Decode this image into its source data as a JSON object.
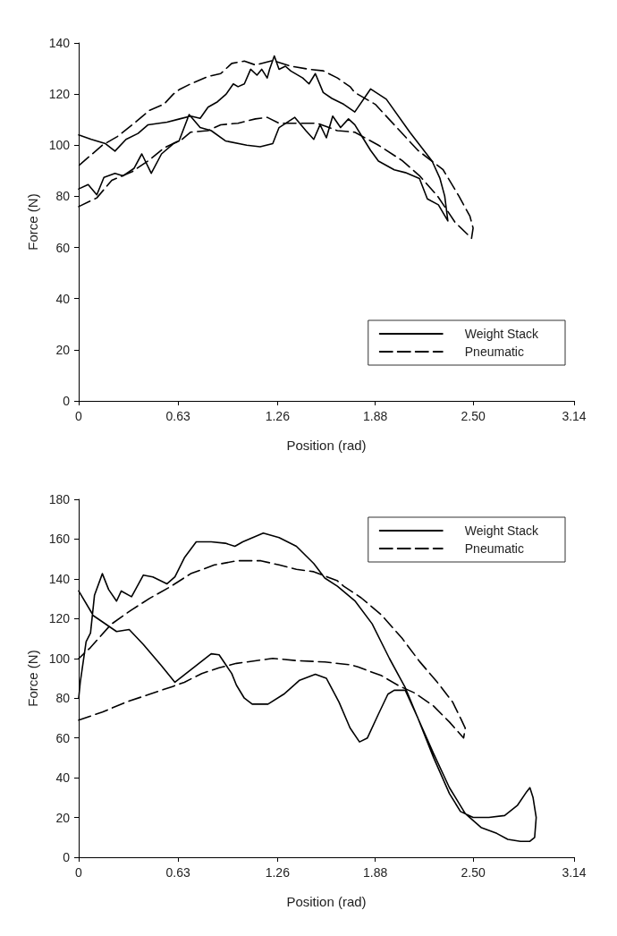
{
  "chart_data": [
    {
      "type": "line",
      "xlabel": "Position (rad)",
      "ylabel": "Force (N)",
      "xlim": [
        0,
        3.14
      ],
      "xticks": [
        0,
        0.63,
        1.26,
        1.88,
        {
          "value": 2.5,
          "label": "2.50"
        },
        3.14
      ],
      "ylim": [
        0,
        140
      ],
      "yticks": [
        0,
        20,
        40,
        60,
        80,
        100,
        120,
        140
      ],
      "grid": false,
      "legend": "bottom right",
      "marker": "none",
      "series": [
        {
          "name": "Weight Stack",
          "color": "#000000",
          "line_style": "solid",
          "x": [
            0,
            0.06,
            0.115,
            0.16,
            0.23,
            0.28,
            0.35,
            0.4,
            0.46,
            0.525,
            0.6,
            0.636,
            0.7,
            0.77,
            0.84,
            0.93,
            1.065,
            1.15,
            1.23,
            1.27,
            1.37,
            1.44,
            1.49,
            1.53,
            1.57,
            1.61,
            1.66,
            1.71,
            1.75,
            1.8,
            1.85,
            1.9,
            2.0,
            2.07,
            2.16,
            2.21,
            2.28,
            2.34,
            2.32,
            2.29,
            2.24,
            2.1,
            1.95,
            1.85,
            1.75,
            1.68,
            1.605,
            1.55,
            1.5,
            1.46,
            1.42,
            1.345,
            1.31,
            1.27,
            1.24,
            1.21,
            1.195,
            1.16,
            1.13,
            1.09,
            1.05,
            1.01,
            0.98,
            0.935,
            0.88,
            0.82,
            0.77,
            0.71,
            0.64,
            0.56,
            0.44,
            0.376,
            0.3,
            0.23,
            0.17,
            0.08,
            0
          ],
          "values": [
            82.9,
            84.6,
            80.6,
            87.4,
            89,
            88,
            90.9,
            96.6,
            89,
            96.6,
            100.6,
            101.7,
            112,
            106.9,
            105.7,
            101.7,
            100,
            99.4,
            100.6,
            106.9,
            110.9,
            105.7,
            102.3,
            108,
            102.9,
            111.4,
            106.9,
            110.3,
            108,
            103,
            98,
            93.8,
            90.4,
            89.3,
            87,
            79,
            76.7,
            70.4,
            80.1,
            87,
            93.8,
            105,
            118,
            122,
            113,
            116,
            118.3,
            120.6,
            128,
            124,
            126.3,
            129,
            130.9,
            129.7,
            134.9,
            129.7,
            126.3,
            129.7,
            127.4,
            129.7,
            124,
            122.9,
            124,
            120,
            117,
            114.9,
            110.5,
            111.4,
            110.3,
            109,
            108,
            104.6,
            102.3,
            97.7,
            100.6,
            102.3,
            104
          ]
        },
        {
          "name": "Pneumatic",
          "color": "#000000",
          "line_style": "dashed",
          "x": [
            0,
            0.115,
            0.21,
            0.34,
            0.45,
            0.54,
            0.655,
            0.71,
            0.82,
            0.9,
            1.01,
            1.12,
            1.195,
            1.27,
            1.38,
            1.51,
            1.64,
            1.75,
            1.9,
            2.05,
            2.16,
            2.275,
            2.385,
            2.49,
            2.5,
            2.48,
            2.41,
            2.31,
            2.15,
            2.0,
            1.88,
            1.75,
            1.72,
            1.64,
            1.55,
            1.46,
            1.345,
            1.23,
            1.12,
            1.05,
            0.97,
            0.9,
            0.82,
            0.71,
            0.636,
            0.6,
            0.54,
            0.45,
            0.34,
            0.245,
            0.15,
            0
          ],
          "values": [
            76,
            79.4,
            86.3,
            89.7,
            94.3,
            98.9,
            102.3,
            105.1,
            105.7,
            108,
            108.6,
            110.3,
            110.9,
            108.6,
            108.6,
            108.6,
            105.7,
            105.1,
            100,
            94,
            88.1,
            80.1,
            69.9,
            63.6,
            67.6,
            72.2,
            80.1,
            90.4,
            98,
            108,
            116,
            120.6,
            122.9,
            126.3,
            129.1,
            129.7,
            130.9,
            133.1,
            131.4,
            132.9,
            132,
            128,
            126.9,
            124,
            121.7,
            120,
            116,
            113.7,
            108,
            103.4,
            100,
            92
          ]
        }
      ]
    },
    {
      "type": "line",
      "xlabel": "Position (rad)",
      "ylabel": "Force (N)",
      "xlim": [
        0,
        3.14
      ],
      "xticks": [
        0,
        0.63,
        1.26,
        1.88,
        {
          "value": 2.5,
          "label": "2.50"
        },
        3.14
      ],
      "ylim": [
        0,
        180
      ],
      "yticks": [
        0,
        20,
        40,
        60,
        80,
        100,
        120,
        140,
        160,
        180
      ],
      "grid": false,
      "legend": "top right",
      "marker": "none",
      "series": [
        {
          "name": "Weight Stack",
          "color": "#000000",
          "line_style": "solid",
          "x": [
            0,
            0.01,
            0.047,
            0.075,
            0.1,
            0.15,
            0.19,
            0.24,
            0.27,
            0.335,
            0.41,
            0.47,
            0.56,
            0.61,
            0.67,
            0.745,
            0.84,
            0.93,
            0.99,
            1.04,
            1.17,
            1.27,
            1.38,
            1.49,
            1.56,
            1.64,
            1.75,
            1.86,
            1.97,
            2.07,
            2.15,
            2.25,
            2.35,
            2.45,
            2.55,
            2.65,
            2.72,
            2.8,
            2.86,
            2.89,
            2.9,
            2.88,
            2.86,
            2.84,
            2.78,
            2.7,
            2.6,
            2.5,
            2.42,
            2.35,
            2.25,
            2.15,
            2.07,
            2.0,
            1.96,
            1.9,
            1.83,
            1.78,
            1.72,
            1.65,
            1.57,
            1.5,
            1.4,
            1.3,
            1.2,
            1.1,
            1.05,
            1.0,
            0.97,
            0.89,
            0.84,
            0.61,
            0.52,
            0.41,
            0.32,
            0.24,
            0.093,
            0
          ],
          "values": [
            80,
            88,
            108.4,
            112.8,
            131.7,
            142.6,
            134.6,
            128.8,
            133.9,
            131,
            141.9,
            141,
            137.5,
            141,
            150.6,
            158.6,
            158.6,
            157.9,
            156.4,
            158.6,
            163,
            160.8,
            156.4,
            147.7,
            140.4,
            136.3,
            129,
            117.4,
            99.9,
            85.3,
            70,
            52,
            35,
            22,
            15,
            12,
            9,
            8,
            8,
            10,
            20,
            30,
            35,
            33,
            26,
            21,
            20,
            20,
            23,
            32,
            50,
            70,
            84,
            84,
            82,
            72,
            60,
            58,
            65,
            78,
            90,
            92,
            89,
            82,
            77,
            77,
            80,
            86.5,
            92.4,
            101.8,
            102.3,
            88,
            96.7,
            107,
            114.5,
            113.5,
            121.5,
            133.9
          ]
        },
        {
          "name": "Pneumatic",
          "color": "#000000",
          "line_style": "dashed",
          "x": [
            0,
            0.15,
            0.3,
            0.45,
            0.6,
            0.67,
            0.78,
            0.89,
            1.0,
            1.23,
            1.38,
            1.56,
            1.73,
            1.77,
            1.92,
            2.03,
            2.13,
            2.25,
            2.35,
            2.44,
            2.45,
            2.42,
            2.37,
            2.27,
            2.16,
            2.05,
            1.92,
            1.79,
            1.68,
            1.64,
            1.49,
            1.38,
            1.27,
            1.155,
            1.005,
            0.86,
            0.71,
            0.58,
            0.45,
            0.335,
            0.205,
            0.075,
            0
          ],
          "values": [
            69,
            73,
            78,
            82,
            86,
            88,
            92.4,
            95.3,
            97.5,
            100,
            98.9,
            98.2,
            96.7,
            95.7,
            91.3,
            86.2,
            82.6,
            76,
            68,
            60,
            65,
            70,
            78.1,
            88.3,
            98.5,
            110.1,
            121.8,
            130.5,
            136.3,
            139,
            143.6,
            144.8,
            147,
            149.1,
            149.1,
            147,
            142.6,
            136,
            130.2,
            124.4,
            117.1,
            105.5,
            99.9
          ]
        }
      ]
    }
  ]
}
